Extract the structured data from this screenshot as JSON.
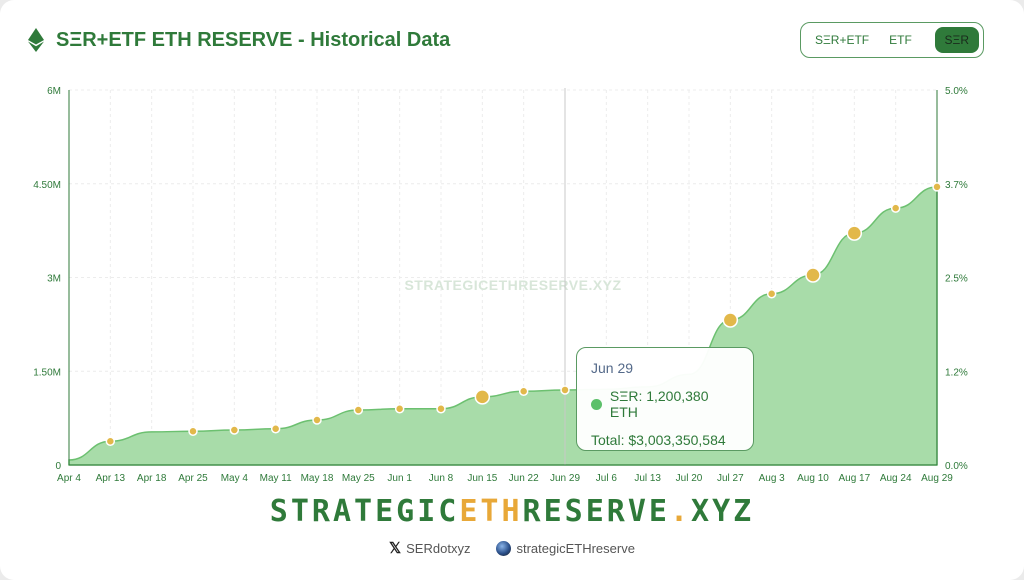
{
  "header": {
    "title": "SΞR+ETF ETH RESERVE - Historical Data",
    "icon": "ethereum-icon"
  },
  "toggle": {
    "options": [
      "SΞR+ETF",
      "ETF",
      "SΞR"
    ],
    "active": "SΞR"
  },
  "chart_data": {
    "type": "area",
    "title": "SΞR+ETF ETH RESERVE - Historical Data",
    "watermark": "STRATEGICETHRESERVE.XYZ",
    "x_ticks": [
      "Apr 4",
      "Apr 13",
      "Apr 18",
      "Apr 25",
      "May 4",
      "May 11",
      "May 18",
      "May 25",
      "Jun 1",
      "Jun 8",
      "Jun 15",
      "Jun 22",
      "Jun 29",
      "Jul 6",
      "Jul 13",
      "Jul 20",
      "Jul 27",
      "Aug 3",
      "Aug 10",
      "Aug 17",
      "Aug 24",
      "Aug 29"
    ],
    "y_ticks": [
      "0",
      "1.50M",
      "3M",
      "4.50M",
      "6M"
    ],
    "y2_ticks": [
      "0.0%",
      "1.2%",
      "2.5%",
      "3.7%",
      "5.0%"
    ],
    "ylim": [
      0,
      6000000
    ],
    "y2lim": [
      0,
      5.0
    ],
    "series": [
      {
        "name": "SΞR",
        "unit": "ETH",
        "color": "#5cc06a",
        "values": [
          80000,
          380000,
          530000,
          540000,
          560000,
          580000,
          720000,
          880000,
          900000,
          900000,
          1090000,
          1180000,
          1200380,
          1210000,
          1250000,
          1450000,
          2320000,
          2740000,
          3040000,
          3710000,
          4110000,
          4450000
        ],
        "markers": [
          false,
          true,
          false,
          true,
          true,
          true,
          true,
          true,
          true,
          true,
          true,
          true,
          true,
          false,
          false,
          false,
          true,
          true,
          true,
          true,
          true,
          true
        ],
        "large": [
          false,
          false,
          false,
          false,
          false,
          false,
          false,
          false,
          false,
          false,
          true,
          false,
          false,
          false,
          false,
          false,
          true,
          false,
          true,
          true,
          false,
          false
        ]
      }
    ],
    "grid": true
  },
  "tooltip": {
    "date": "Jun 29",
    "series_label": "SΞR: 1,200,380 ETH",
    "total_label": "Total: $3,003,350,584"
  },
  "footer": {
    "brand_pre": "STRATEGIC",
    "brand_eth": "ETH",
    "brand_post": "RESERVE",
    "brand_dot": ".",
    "brand_tld": "XYZ",
    "twitter": "SERdotxyz",
    "website": "strategicETHreserve"
  }
}
